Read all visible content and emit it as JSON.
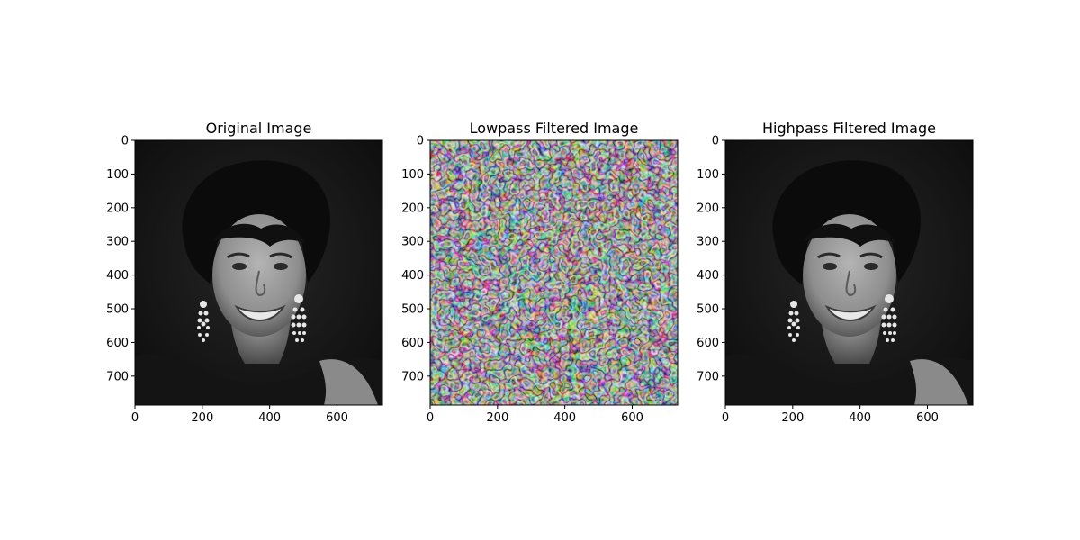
{
  "chart_data": [
    {
      "type": "image",
      "title": "Original Image",
      "content": "grayscale-portrait",
      "x_ticks": [
        0,
        200,
        400,
        600
      ],
      "y_ticks": [
        0,
        100,
        200,
        300,
        400,
        500,
        600,
        700
      ],
      "xlim": [
        0,
        735
      ],
      "ylim": [
        786,
        0
      ]
    },
    {
      "type": "image",
      "title": "Lowpass Filtered Image",
      "content": "noise-texture",
      "x_ticks": [
        0,
        200,
        400,
        600
      ],
      "y_ticks": [
        0,
        100,
        200,
        300,
        400,
        500,
        600,
        700
      ],
      "xlim": [
        0,
        735
      ],
      "ylim": [
        786,
        0
      ]
    },
    {
      "type": "image",
      "title": "Highpass Filtered Image",
      "content": "grayscale-portrait",
      "x_ticks": [
        0,
        200,
        400,
        600
      ],
      "y_ticks": [
        0,
        100,
        200,
        300,
        400,
        500,
        600,
        700
      ],
      "xlim": [
        0,
        735
      ],
      "ylim": [
        786,
        0
      ]
    }
  ]
}
